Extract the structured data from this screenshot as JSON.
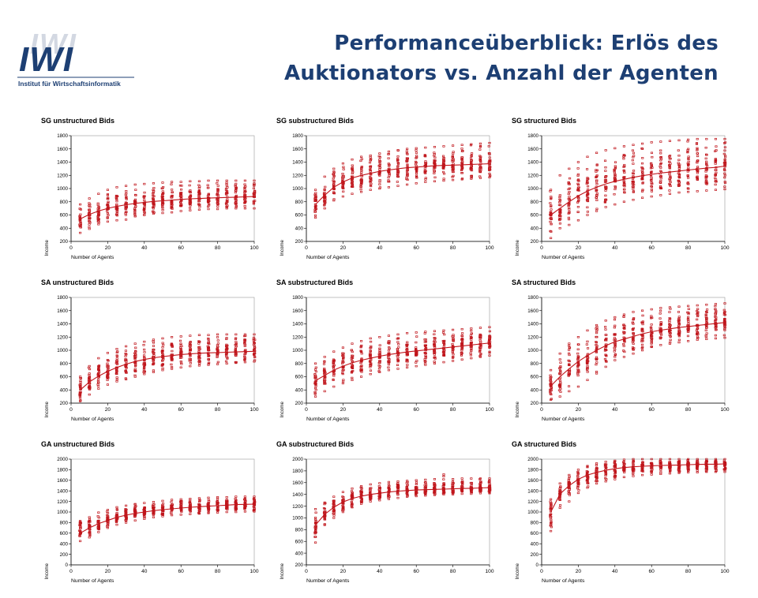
{
  "header": {
    "title_line1": "Performanceüberblick: Erlös des",
    "title_line2": "Auktionators vs. Anzahl der Agenten",
    "title_color": "#1d3f73"
  },
  "logo": {
    "mark": "IWI",
    "subtitle": "Institut für Wirtschaftsinformatik",
    "mark_color": "#1d3f73"
  },
  "colors": {
    "data": "#c0161c",
    "axis": "#000000"
  },
  "chart_data": [
    {
      "type": "scatter",
      "title": "SG unstructured Bids",
      "xlabel": "Number of Agents",
      "ylabel": "Income",
      "xlim": [
        0,
        100
      ],
      "ylim": [
        200,
        1800
      ],
      "xticks": [
        0,
        20,
        40,
        60,
        80,
        100
      ],
      "yticks": [
        200,
        400,
        600,
        800,
        1000,
        1200,
        1400,
        1600,
        1800
      ],
      "x": [
        5,
        10,
        15,
        20,
        25,
        30,
        35,
        40,
        45,
        50,
        55,
        60,
        65,
        70,
        75,
        80,
        85,
        90,
        95,
        100
      ],
      "y_min": [
        330,
        390,
        460,
        500,
        520,
        530,
        580,
        600,
        620,
        630,
        640,
        660,
        670,
        680,
        690,
        690,
        700,
        700,
        700,
        700
      ],
      "y_max": [
        760,
        850,
        920,
        980,
        1020,
        1040,
        1060,
        1070,
        1080,
        1090,
        1100,
        1100,
        1110,
        1110,
        1120,
        1120,
        1120,
        1120,
        1120,
        1120
      ],
      "trend": [
        540,
        610,
        660,
        700,
        730,
        755,
        775,
        790,
        805,
        815,
        825,
        835,
        845,
        850,
        855,
        860,
        865,
        870,
        875,
        880
      ]
    },
    {
      "type": "scatter",
      "title": "SG substructured Bids",
      "xlabel": "Number of Agents",
      "ylabel": "Income",
      "xlim": [
        0,
        100
      ],
      "ylim": [
        200,
        1800
      ],
      "xticks": [
        0,
        20,
        40,
        60,
        80,
        100
      ],
      "yticks": [
        200,
        400,
        600,
        800,
        1000,
        1200,
        1400,
        1600,
        1800
      ],
      "x": [
        5,
        10,
        15,
        20,
        25,
        30,
        35,
        40,
        45,
        50,
        55,
        60,
        65,
        70,
        75,
        80,
        85,
        90,
        95,
        100
      ],
      "y_min": [
        560,
        700,
        820,
        880,
        920,
        950,
        980,
        1000,
        1020,
        1040,
        1060,
        1080,
        1100,
        1110,
        1120,
        1130,
        1140,
        1150,
        1160,
        1170
      ],
      "y_max": [
        980,
        1180,
        1300,
        1380,
        1440,
        1480,
        1500,
        1530,
        1560,
        1580,
        1600,
        1610,
        1620,
        1630,
        1640,
        1650,
        1660,
        1670,
        1680,
        1690
      ],
      "trend": [
        760,
        900,
        1020,
        1100,
        1160,
        1200,
        1230,
        1260,
        1280,
        1300,
        1315,
        1325,
        1335,
        1345,
        1350,
        1355,
        1360,
        1365,
        1370,
        1375
      ]
    },
    {
      "type": "scatter",
      "title": "SG structured Bids",
      "xlabel": "Number of Agents",
      "ylabel": "Income",
      "xlim": [
        0,
        100
      ],
      "ylim": [
        200,
        1800
      ],
      "xticks": [
        0,
        20,
        40,
        60,
        80,
        100
      ],
      "yticks": [
        200,
        400,
        600,
        800,
        1000,
        1200,
        1400,
        1600,
        1800
      ],
      "x": [
        5,
        10,
        15,
        20,
        25,
        30,
        35,
        40,
        45,
        50,
        55,
        60,
        65,
        70,
        75,
        80,
        85,
        90,
        95,
        100
      ],
      "y_min": [
        250,
        400,
        450,
        520,
        600,
        660,
        720,
        760,
        800,
        830,
        860,
        880,
        900,
        920,
        940,
        950,
        960,
        970,
        980,
        990
      ],
      "y_max": [
        980,
        1200,
        1300,
        1400,
        1480,
        1540,
        1580,
        1610,
        1640,
        1660,
        1680,
        1700,
        1710,
        1720,
        1730,
        1740,
        1750,
        1750,
        1750,
        1750
      ],
      "trend": [
        600,
        700,
        800,
        890,
        960,
        1020,
        1070,
        1110,
        1140,
        1170,
        1195,
        1215,
        1235,
        1250,
        1265,
        1280,
        1295,
        1310,
        1320,
        1340
      ]
    },
    {
      "type": "scatter",
      "title": "SA unstructured Bids",
      "xlabel": "Number of Agents",
      "ylabel": "Income",
      "xlim": [
        0,
        100
      ],
      "ylim": [
        200,
        1800
      ],
      "xticks": [
        0,
        20,
        40,
        60,
        80,
        100
      ],
      "yticks": [
        200,
        400,
        600,
        800,
        1000,
        1200,
        1400,
        1600,
        1800
      ],
      "x": [
        5,
        10,
        15,
        20,
        25,
        30,
        35,
        40,
        45,
        50,
        55,
        60,
        65,
        70,
        75,
        80,
        85,
        90,
        95,
        100
      ],
      "y_min": [
        230,
        330,
        420,
        480,
        530,
        560,
        600,
        640,
        670,
        700,
        720,
        740,
        760,
        770,
        780,
        790,
        800,
        810,
        820,
        830
      ],
      "y_max": [
        600,
        760,
        880,
        960,
        1020,
        1060,
        1100,
        1130,
        1160,
        1180,
        1200,
        1210,
        1220,
        1230,
        1230,
        1240,
        1240,
        1240,
        1240,
        1240
      ],
      "trend": [
        400,
        520,
        610,
        680,
        740,
        790,
        830,
        860,
        885,
        905,
        920,
        935,
        945,
        955,
        960,
        965,
        970,
        975,
        980,
        985
      ]
    },
    {
      "type": "scatter",
      "title": "SA substructured Bids",
      "xlabel": "Number of Agents",
      "ylabel": "Income",
      "xlim": [
        0,
        100
      ],
      "ylim": [
        200,
        1800
      ],
      "xticks": [
        0,
        20,
        40,
        60,
        80,
        100
      ],
      "yticks": [
        200,
        400,
        600,
        800,
        1000,
        1200,
        1400,
        1600,
        1800
      ],
      "x": [
        5,
        10,
        15,
        20,
        25,
        30,
        35,
        40,
        45,
        50,
        55,
        60,
        65,
        70,
        75,
        80,
        85,
        90,
        95,
        100
      ],
      "y_min": [
        300,
        380,
        450,
        500,
        550,
        600,
        640,
        670,
        700,
        720,
        740,
        760,
        780,
        800,
        820,
        840,
        860,
        880,
        900,
        920
      ],
      "y_max": [
        800,
        900,
        980,
        1040,
        1100,
        1140,
        1180,
        1200,
        1220,
        1240,
        1260,
        1270,
        1280,
        1290,
        1300,
        1310,
        1320,
        1330,
        1340,
        1350
      ],
      "trend": [
        540,
        620,
        700,
        760,
        810,
        850,
        880,
        910,
        935,
        955,
        975,
        990,
        1005,
        1020,
        1035,
        1050,
        1065,
        1080,
        1095,
        1110
      ]
    },
    {
      "type": "scatter",
      "title": "SA structured Bids",
      "xlabel": "Number of Agents",
      "ylabel": "Income",
      "xlim": [
        0,
        100
      ],
      "ylim": [
        200,
        1800
      ],
      "xticks": [
        0,
        20,
        40,
        60,
        80,
        100
      ],
      "yticks": [
        200,
        400,
        600,
        800,
        1000,
        1200,
        1400,
        1600,
        1800
      ],
      "x": [
        5,
        10,
        15,
        20,
        25,
        30,
        35,
        40,
        45,
        50,
        55,
        60,
        65,
        70,
        75,
        80,
        85,
        90,
        95,
        100
      ],
      "y_min": [
        250,
        300,
        380,
        450,
        550,
        650,
        750,
        850,
        900,
        950,
        1000,
        1050,
        1080,
        1100,
        1120,
        1140,
        1160,
        1170,
        1180,
        1190
      ],
      "y_max": [
        700,
        950,
        1100,
        1200,
        1300,
        1380,
        1450,
        1500,
        1540,
        1580,
        1600,
        1620,
        1640,
        1650,
        1660,
        1670,
        1680,
        1690,
        1700,
        1710
      ],
      "trend": [
        460,
        600,
        720,
        830,
        920,
        1000,
        1070,
        1130,
        1170,
        1210,
        1250,
        1280,
        1305,
        1325,
        1345,
        1360,
        1375,
        1390,
        1405,
        1420
      ]
    },
    {
      "type": "scatter",
      "title": "GA unstructured Bids",
      "xlabel": "Number of Agents",
      "ylabel": "Income",
      "xlim": [
        0,
        100
      ],
      "ylim": [
        0,
        2000
      ],
      "xticks": [
        0,
        20,
        40,
        60,
        80,
        100
      ],
      "yticks": [
        0,
        200,
        400,
        600,
        800,
        1000,
        1200,
        1400,
        1600,
        1800,
        2000
      ],
      "x": [
        5,
        10,
        15,
        20,
        25,
        30,
        35,
        40,
        45,
        50,
        55,
        60,
        65,
        70,
        75,
        80,
        85,
        90,
        95,
        100
      ],
      "y_min": [
        450,
        520,
        620,
        700,
        760,
        800,
        840,
        870,
        900,
        920,
        940,
        950,
        960,
        970,
        980,
        990,
        1000,
        1000,
        1010,
        1010
      ],
      "y_max": [
        830,
        900,
        990,
        1040,
        1090,
        1120,
        1150,
        1170,
        1190,
        1210,
        1230,
        1240,
        1250,
        1260,
        1270,
        1280,
        1280,
        1290,
        1290,
        1290
      ],
      "trend": [
        600,
        700,
        780,
        840,
        900,
        940,
        975,
        1000,
        1025,
        1045,
        1060,
        1075,
        1090,
        1100,
        1110,
        1120,
        1130,
        1140,
        1145,
        1150
      ]
    },
    {
      "type": "scatter",
      "title": "GA substructured Bids",
      "xlabel": "Number of Agents",
      "ylabel": "Income",
      "xlim": [
        0,
        100
      ],
      "ylim": [
        200,
        2000
      ],
      "xticks": [
        0,
        20,
        40,
        60,
        80,
        100
      ],
      "yticks": [
        200,
        400,
        600,
        800,
        1000,
        1200,
        1400,
        1600,
        1800,
        2000
      ],
      "x": [
        5,
        10,
        15,
        20,
        25,
        30,
        35,
        40,
        45,
        50,
        55,
        60,
        65,
        70,
        75,
        80,
        85,
        90,
        95,
        100
      ],
      "y_min": [
        580,
        880,
        1000,
        1100,
        1180,
        1240,
        1280,
        1300,
        1320,
        1340,
        1360,
        1370,
        1380,
        1390,
        1400,
        1400,
        1410,
        1410,
        1420,
        1420
      ],
      "y_max": [
        1150,
        1260,
        1360,
        1440,
        1500,
        1540,
        1570,
        1590,
        1610,
        1620,
        1630,
        1640,
        1650,
        1660,
        1740,
        1660,
        1670,
        1670,
        1670,
        1670
      ],
      "trend": [
        880,
        1060,
        1180,
        1270,
        1330,
        1370,
        1400,
        1420,
        1440,
        1455,
        1465,
        1475,
        1480,
        1485,
        1490,
        1495,
        1500,
        1505,
        1510,
        1515
      ]
    },
    {
      "type": "scatter",
      "title": "GA structured Bids",
      "xlabel": "Number of Agents",
      "ylabel": "Income",
      "xlim": [
        0,
        100
      ],
      "ylim": [
        0,
        2000
      ],
      "xticks": [
        0,
        20,
        40,
        60,
        80,
        100
      ],
      "yticks": [
        0,
        200,
        400,
        600,
        800,
        1000,
        1200,
        1400,
        1600,
        1800,
        2000
      ],
      "x": [
        5,
        10,
        15,
        20,
        25,
        30,
        35,
        40,
        45,
        50,
        55,
        60,
        65,
        70,
        75,
        80,
        85,
        90,
        95,
        100
      ],
      "y_min": [
        640,
        1080,
        1200,
        1360,
        1460,
        1540,
        1580,
        1620,
        1660,
        1680,
        1700,
        1710,
        1720,
        1730,
        1740,
        1750,
        1750,
        1760,
        1760,
        1760
      ],
      "y_max": [
        1240,
        1540,
        1700,
        1800,
        1870,
        1920,
        1950,
        1970,
        1990,
        2000,
        2000,
        2000,
        2000,
        2000,
        2000,
        2000,
        2000,
        2000,
        2000,
        2000
      ],
      "trend": [
        1000,
        1340,
        1500,
        1620,
        1700,
        1750,
        1790,
        1820,
        1840,
        1855,
        1865,
        1875,
        1880,
        1885,
        1890,
        1895,
        1900,
        1905,
        1905,
        1910
      ]
    }
  ]
}
